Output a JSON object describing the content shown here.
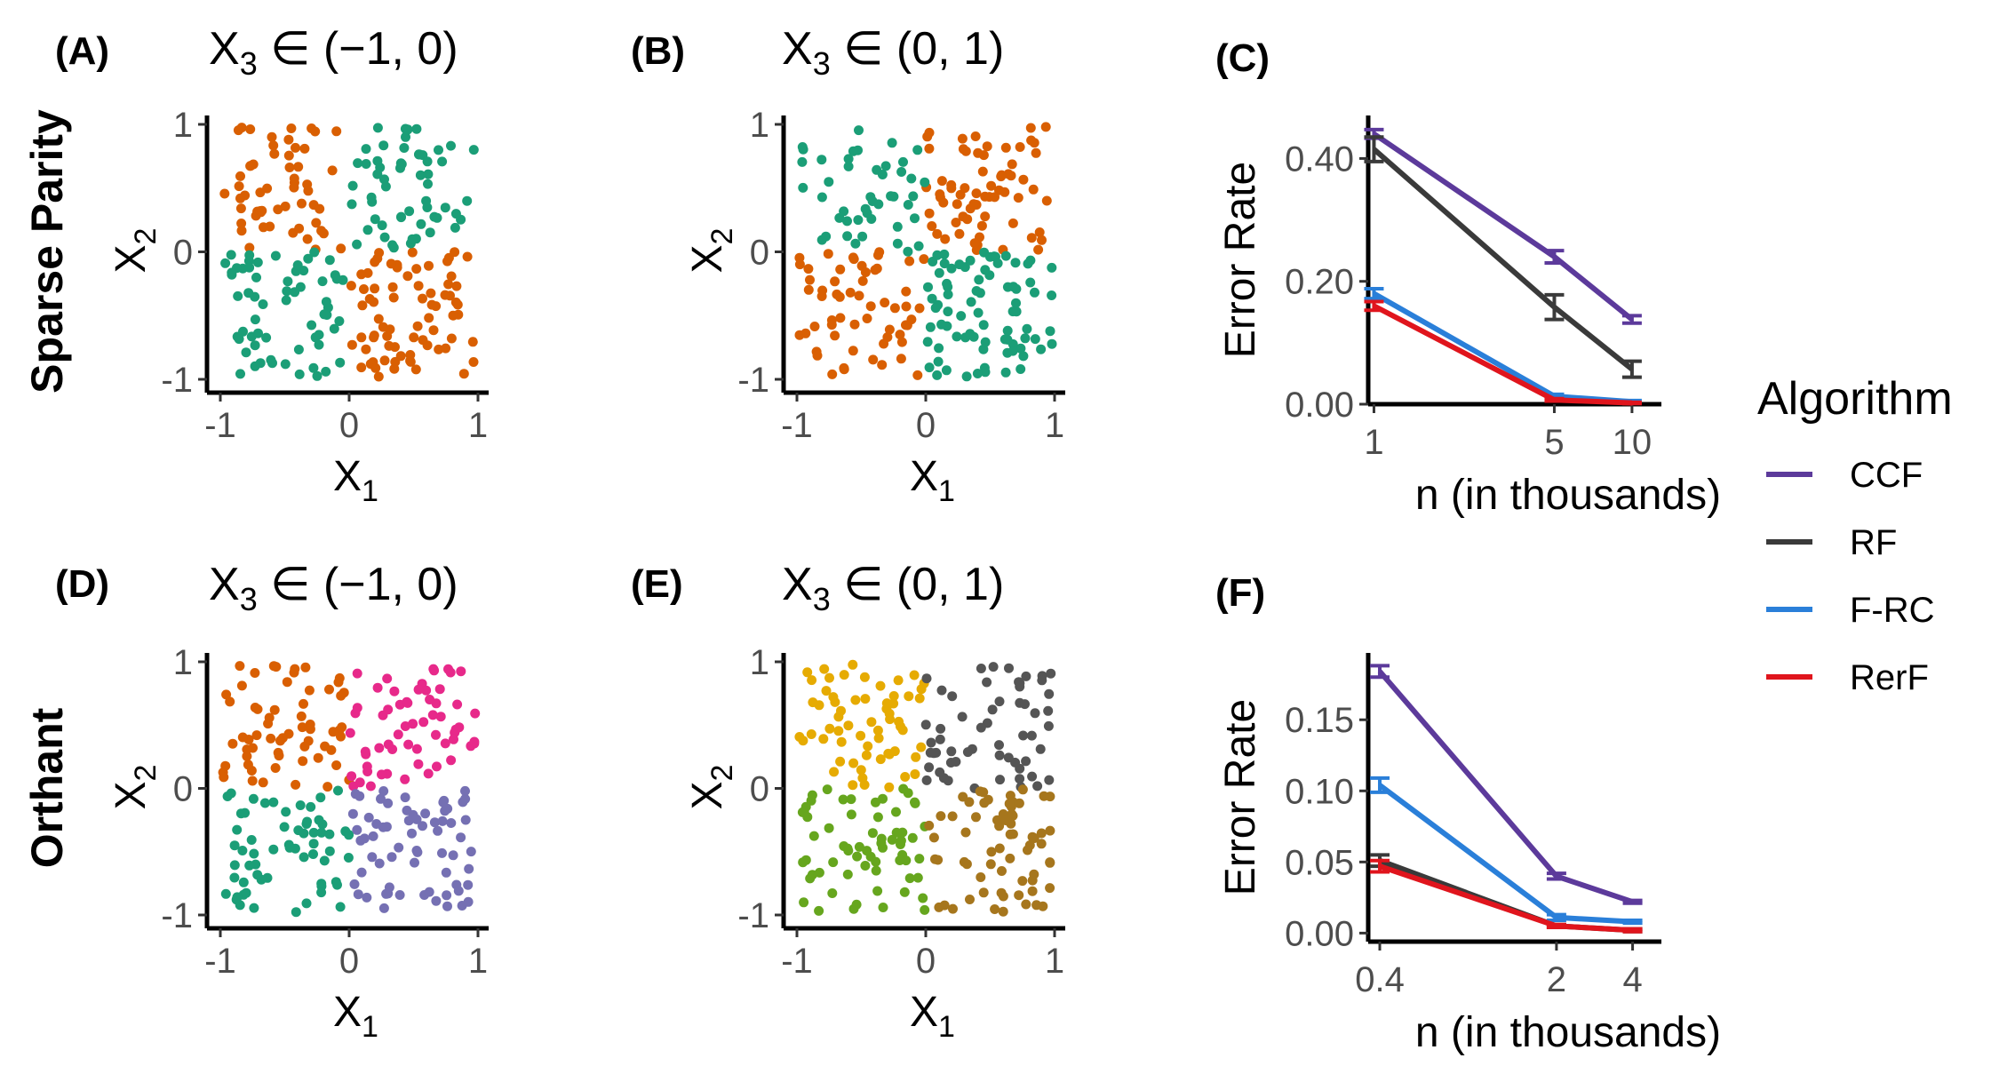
{
  "row_labels": [
    "Sparse Parity",
    "Orthant"
  ],
  "legend": {
    "title": "Algorithm",
    "items": [
      {
        "label": "CCF",
        "color": "#5c3a9b"
      },
      {
        "label": "RF",
        "color": "#3a3a3a"
      },
      {
        "label": "F-RC",
        "color": "#2a7fd9"
      },
      {
        "label": "RerF",
        "color": "#e0151d"
      }
    ]
  },
  "chart_data": [
    {
      "id": "A",
      "type": "scatter",
      "letter": "(A)",
      "title_main": "X",
      "title_sub": "3",
      "title_rest": " ∈ (−1, 0)",
      "xlabel_main": "X",
      "xlabel_sub": "1",
      "ylabel_main": "X",
      "ylabel_sub": "2",
      "xlim": [
        -1,
        1
      ],
      "ylim": [
        -1,
        1
      ],
      "xticks": [
        -1,
        0,
        1
      ],
      "yticks": [
        -1,
        0,
        1
      ],
      "tick_labels_x": [
        "-1",
        "0",
        "1"
      ],
      "tick_labels_y": [
        "-1",
        "0",
        "1"
      ],
      "classes": [
        {
          "color": "#d95f02",
          "region": "(x<0 & y>0) | (x>0 & y<0)",
          "count": 130
        },
        {
          "color": "#1b9e77",
          "region": "(x>0 & y>0) | (x<0 & y<0)",
          "count": 120
        }
      ]
    },
    {
      "id": "B",
      "type": "scatter",
      "letter": "(B)",
      "title_main": "X",
      "title_sub": "3",
      "title_rest": " ∈ (0, 1)",
      "xlabel_main": "X",
      "xlabel_sub": "1",
      "ylabel_main": "X",
      "ylabel_sub": "2",
      "xlim": [
        -1,
        1
      ],
      "ylim": [
        -1,
        1
      ],
      "xticks": [
        -1,
        0,
        1
      ],
      "yticks": [
        -1,
        0,
        1
      ],
      "tick_labels_x": [
        "-1",
        "0",
        "1"
      ],
      "tick_labels_y": [
        "-1",
        "0",
        "1"
      ],
      "classes": [
        {
          "color": "#d95f02",
          "region": "(x>0 & y>0) | (x<0 & y<0)",
          "count": 125
        },
        {
          "color": "#1b9e77",
          "region": "(x<0 & y>0) | (x>0 & y<0)",
          "count": 125
        }
      ]
    },
    {
      "id": "C",
      "type": "line",
      "letter": "(C)",
      "xlabel": "n (in thousands)",
      "ylabel": "Error Rate",
      "x": [
        1,
        5,
        10
      ],
      "xscale": "log",
      "xlim": [
        0.95,
        13
      ],
      "xticks": [
        1,
        5,
        10
      ],
      "tick_labels_x": [
        "1",
        "5",
        "10"
      ],
      "ylim": [
        0,
        0.47
      ],
      "yticks": [
        0,
        0.2,
        0.4
      ],
      "tick_labels_y": [
        "0.00",
        "0.20",
        "0.40"
      ],
      "series": [
        {
          "name": "CCF",
          "color": "#5c3a9b",
          "values": [
            0.44,
            0.24,
            0.138
          ],
          "err": [
            0.007,
            0.01,
            0.006
          ]
        },
        {
          "name": "RF",
          "color": "#3a3a3a",
          "values": [
            0.415,
            0.158,
            0.057
          ],
          "err": [
            0.02,
            0.02,
            0.013
          ]
        },
        {
          "name": "F-RC",
          "color": "#2a7fd9",
          "values": [
            0.18,
            0.013,
            0.004
          ],
          "err": [
            0.008,
            0.003,
            0.002
          ]
        },
        {
          "name": "RerF",
          "color": "#e0151d",
          "values": [
            0.16,
            0.007,
            0.002
          ],
          "err": [
            0.007,
            0.002,
            0.001
          ]
        }
      ]
    },
    {
      "id": "D",
      "type": "scatter",
      "letter": "(D)",
      "title_main": "X",
      "title_sub": "3",
      "title_rest": " ∈ (−1, 0)",
      "xlabel_main": "X",
      "xlabel_sub": "1",
      "ylabel_main": "X",
      "ylabel_sub": "2",
      "xlim": [
        -1,
        1
      ],
      "ylim": [
        -1,
        1
      ],
      "xticks": [
        -1,
        0,
        1
      ],
      "yticks": [
        -1,
        0,
        1
      ],
      "tick_labels_x": [
        "-1",
        "0",
        "1"
      ],
      "tick_labels_y": [
        "-1",
        "0",
        "1"
      ],
      "classes": [
        {
          "color": "#d95f02",
          "region": "x<0 & y>0",
          "count": 62
        },
        {
          "color": "#e7298a",
          "region": "x>0 & y>0",
          "count": 60
        },
        {
          "color": "#1b9e77",
          "region": "x<0 & y<0",
          "count": 62
        },
        {
          "color": "#7570b3",
          "region": "x>0 & y<0",
          "count": 66
        }
      ]
    },
    {
      "id": "E",
      "type": "scatter",
      "letter": "(E)",
      "title_main": "X",
      "title_sub": "3",
      "title_rest": " ∈ (0, 1)",
      "xlabel_main": "X",
      "xlabel_sub": "1",
      "ylabel_main": "X",
      "ylabel_sub": "2",
      "xlim": [
        -1,
        1
      ],
      "ylim": [
        -1,
        1
      ],
      "xticks": [
        -1,
        0,
        1
      ],
      "yticks": [
        -1,
        0,
        1
      ],
      "tick_labels_x": [
        "-1",
        "0",
        "1"
      ],
      "tick_labels_y": [
        "-1",
        "0",
        "1"
      ],
      "classes": [
        {
          "color": "#e6ab02",
          "region": "x<0 & y>0",
          "count": 62
        },
        {
          "color": "#555555",
          "region": "x>0 & y>0",
          "count": 58
        },
        {
          "color": "#66a61e",
          "region": "x<0 & y<0",
          "count": 64
        },
        {
          "color": "#a6761d",
          "region": "x>0 & y<0",
          "count": 66
        }
      ]
    },
    {
      "id": "F",
      "type": "line",
      "letter": "(F)",
      "xlabel": "n (in thousands)",
      "ylabel": "Error Rate",
      "x": [
        0.4,
        2,
        4
      ],
      "xscale": "log",
      "xlim": [
        0.36,
        5.2
      ],
      "xticks": [
        0.4,
        2,
        4
      ],
      "tick_labels_x": [
        "0.4",
        "2",
        "4"
      ],
      "ylim": [
        -0.006,
        0.197
      ],
      "yticks": [
        0,
        0.05,
        0.1,
        0.15
      ],
      "tick_labels_y": [
        "0.00",
        "0.05",
        "0.10",
        "0.15"
      ],
      "series": [
        {
          "name": "CCF",
          "color": "#5c3a9b",
          "values": [
            0.184,
            0.04,
            0.022
          ],
          "err": [
            0.004,
            0.002,
            0.001
          ]
        },
        {
          "name": "RF",
          "color": "#3a3a3a",
          "values": [
            0.051,
            0.005,
            0.002
          ],
          "err": [
            0.004,
            0.001,
            0.001
          ]
        },
        {
          "name": "F-RC",
          "color": "#2a7fd9",
          "values": [
            0.104,
            0.011,
            0.008
          ],
          "err": [
            0.005,
            0.002,
            0.001
          ]
        },
        {
          "name": "RerF",
          "color": "#e0151d",
          "values": [
            0.047,
            0.005,
            0.002
          ],
          "err": [
            0.004,
            0.001,
            0.001
          ]
        }
      ]
    }
  ]
}
